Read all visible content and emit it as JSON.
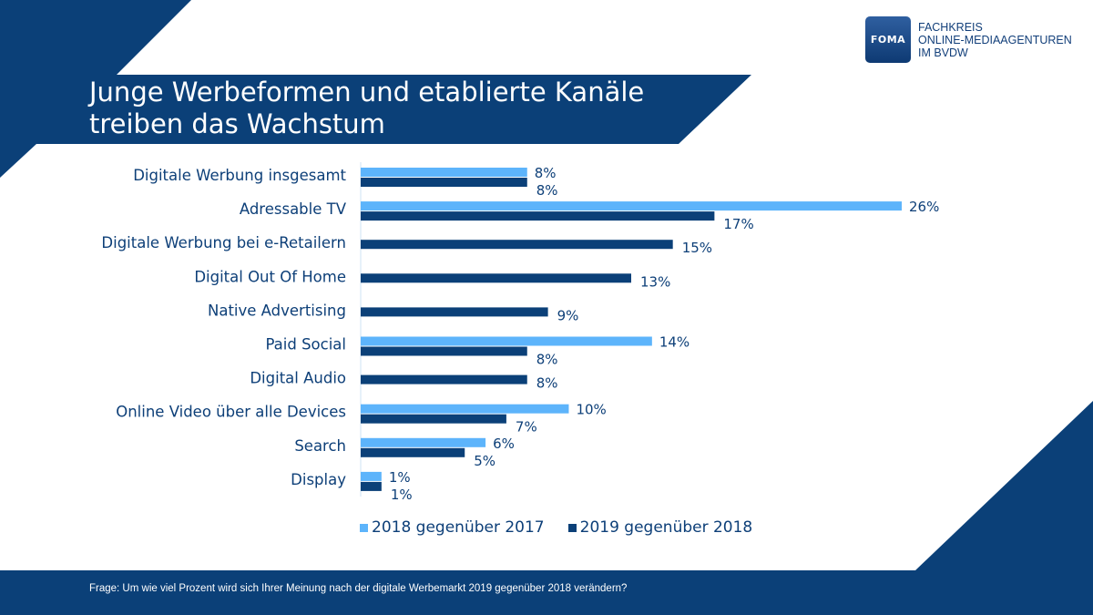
{
  "title_lines": [
    "Junge Werbeformen und etablierte Kanäle",
    "treiben das Wachstum"
  ],
  "logo": {
    "mark": "FOMA",
    "lines": [
      "FACHKREIS",
      "ONLINE-MEDIAAGENTUREN",
      "IM BVDW"
    ]
  },
  "colors": {
    "navy": "#0b4078",
    "light": "#5db4fb",
    "dark": "#0b4078"
  },
  "chart_data": {
    "type": "bar",
    "orientation": "horizontal",
    "categories": [
      "Digitale Werbung insgesamt",
      "Adressable TV",
      "Digitale Werbung bei e-Retailern",
      "Digital Out Of Home",
      "Native Advertising",
      "Paid Social",
      "Digital Audio",
      "Online Video über alle Devices",
      "Search",
      "Display"
    ],
    "series": [
      {
        "name": "2018 gegenüber 2017",
        "color": "#5db4fb",
        "values": [
          8,
          26,
          null,
          null,
          null,
          14,
          null,
          10,
          6,
          1
        ]
      },
      {
        "name": "2019 gegenüber 2018",
        "color": "#0b4078",
        "values": [
          8,
          17,
          15,
          13,
          9,
          8,
          8,
          7,
          5,
          1
        ]
      }
    ],
    "unit": "%",
    "xlim": [
      0,
      26
    ],
    "grid": false,
    "legend": "bottom"
  },
  "footer": "Frage: Um wie viel Prozent wird sich Ihrer Meinung nach der digitale Werbemarkt 2019 gegenüber 2018 verändern?"
}
